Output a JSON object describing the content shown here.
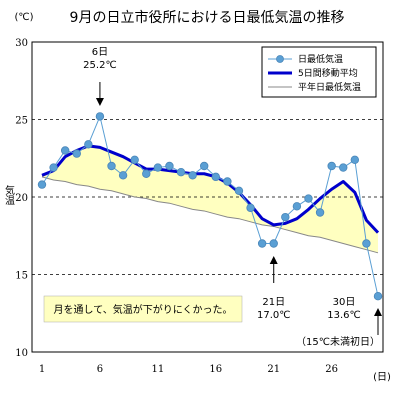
{
  "chart_data": {
    "type": "line",
    "title": "9月の日立市役所における日最低気温の推移",
    "ylabel": "気温",
    "yunit": "(℃)",
    "xunit": "(日)",
    "xlim": [
      1,
      30
    ],
    "ylim": [
      10,
      30
    ],
    "y_ticks": [
      10,
      15,
      20,
      25,
      30
    ],
    "x_ticks": [
      1,
      6,
      11,
      16,
      21,
      26
    ],
    "grid": "horizontal-dashed",
    "legend_position": "top-right",
    "days": [
      1,
      2,
      3,
      4,
      5,
      6,
      7,
      8,
      9,
      10,
      11,
      12,
      13,
      14,
      15,
      16,
      17,
      18,
      19,
      20,
      21,
      22,
      23,
      24,
      25,
      26,
      27,
      28,
      29,
      30
    ],
    "series": [
      {
        "name": "日最低気温",
        "color": "#5a9fd4",
        "values": [
          20.8,
          21.9,
          23.0,
          22.8,
          23.4,
          25.2,
          22.0,
          21.4,
          22.4,
          21.5,
          21.9,
          22.0,
          21.6,
          21.4,
          22.0,
          21.3,
          21.0,
          20.4,
          19.3,
          17.0,
          17.0,
          18.7,
          19.4,
          19.9,
          19.0,
          22.0,
          21.9,
          22.4,
          17.0,
          13.6
        ]
      },
      {
        "name": "5日間移動平均",
        "color": "#0000cc",
        "values": [
          21.4,
          21.7,
          22.6,
          23.0,
          23.3,
          23.2,
          22.9,
          22.6,
          22.2,
          21.8,
          21.8,
          21.7,
          21.6,
          21.5,
          21.5,
          21.3,
          20.9,
          20.3,
          19.5,
          18.6,
          18.2,
          18.3,
          18.6,
          19.2,
          19.9,
          20.5,
          21.0,
          20.3,
          18.5,
          17.7
        ]
      },
      {
        "name": "平年日最低気温",
        "color": "#888888",
        "values": [
          21.3,
          21.1,
          21.0,
          20.8,
          20.7,
          20.5,
          20.4,
          20.2,
          20.0,
          19.9,
          19.7,
          19.6,
          19.4,
          19.2,
          19.1,
          18.9,
          18.7,
          18.6,
          18.4,
          18.2,
          18.1,
          17.9,
          17.7,
          17.5,
          17.4,
          17.2,
          17.0,
          16.8,
          16.6,
          16.4
        ]
      }
    ],
    "fill_color": "#ffffc0",
    "annotations": [
      {
        "day": 6,
        "line1": "6日",
        "line2": "25.2℃"
      },
      {
        "day": 21,
        "line1": "21日",
        "line2": "17.0℃"
      },
      {
        "day": 30,
        "line1": "30日",
        "line2": "13.6℃",
        "line3": "（15℃未満初日）"
      }
    ],
    "note": "月を通して、気温が下がりにくかった。",
    "note_bg": "#ffffc0"
  }
}
